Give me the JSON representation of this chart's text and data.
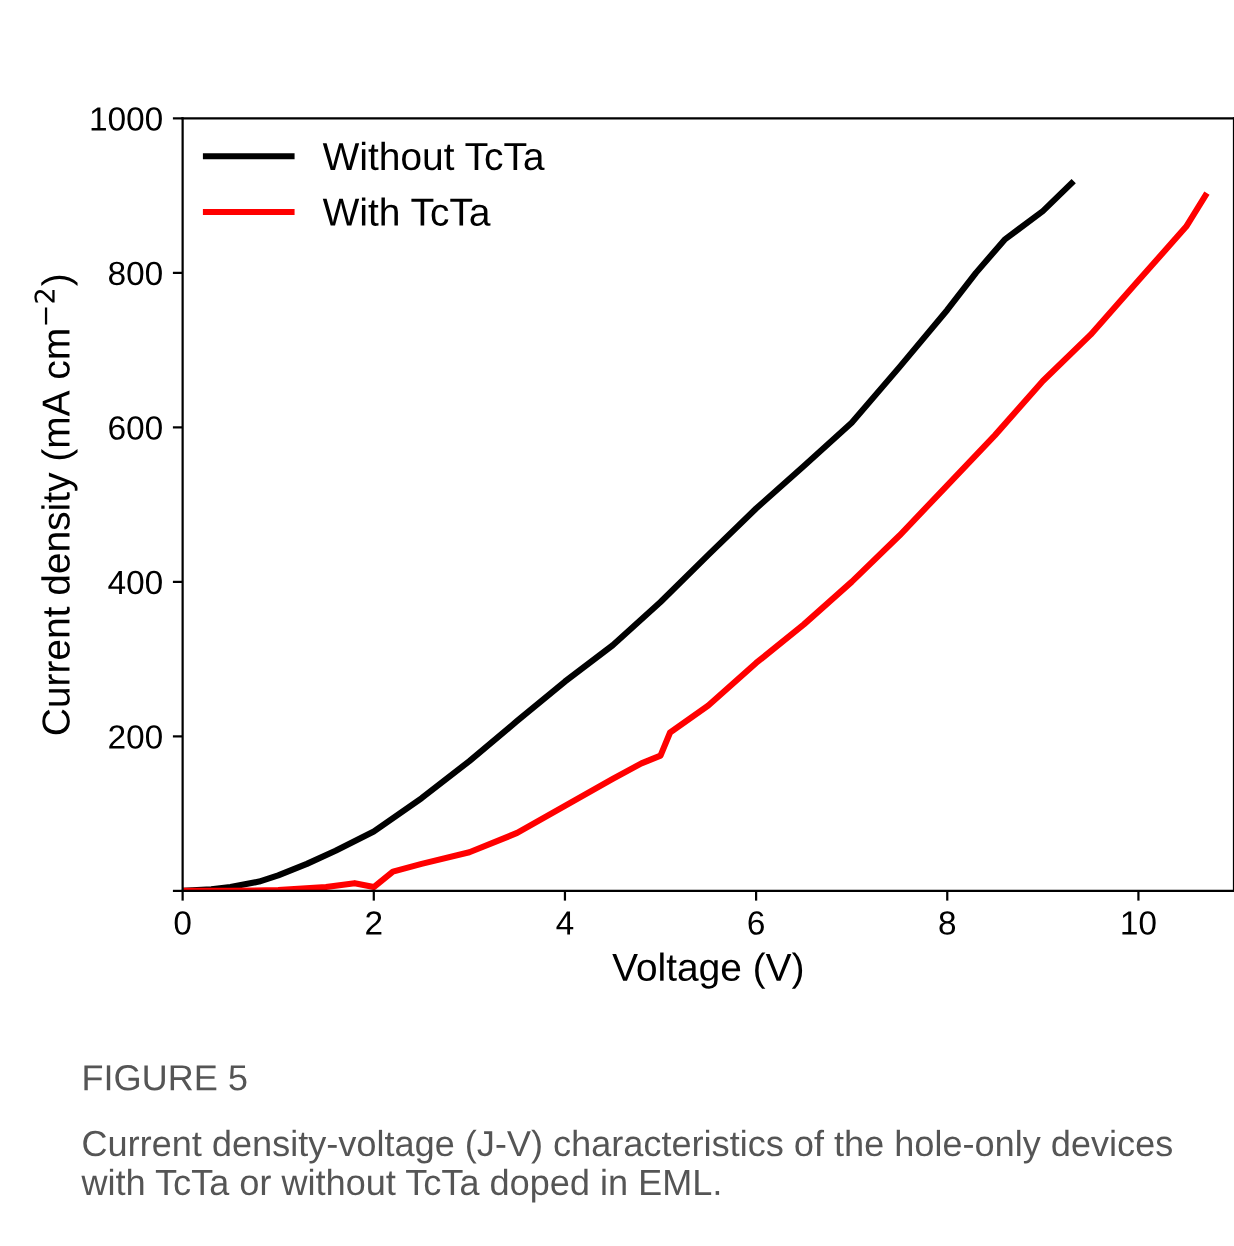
{
  "chart_data": {
    "type": "line",
    "xlabel": "Voltage (V)",
    "ylabel": "Current density (mA cm$^{−2}$)",
    "xlim": [
      0,
      11
    ],
    "ylim": [
      0,
      1000
    ],
    "xticks": [
      0,
      2,
      4,
      6,
      8,
      10
    ],
    "yticks": [
      {
        "value": 0,
        "label": null
      },
      200,
      400,
      600,
      800,
      1000
    ],
    "legend": "top left",
    "grid": false,
    "marker": "none",
    "line_style": "solid",
    "series": [
      {
        "name": "Without TcTa",
        "color": "#000000",
        "x": [
          0,
          0.3,
          0.5,
          0.8,
          1,
          1.3,
          1.6,
          2,
          2.5,
          3,
          3.5,
          4,
          4.5,
          5,
          5.5,
          6,
          6.5,
          7,
          7.5,
          8,
          8.3,
          8.6,
          9,
          9.3
        ],
        "values": [
          0,
          2,
          5,
          12,
          20,
          35,
          52,
          77,
          120,
          168,
          220,
          271,
          318,
          374,
          435,
          495,
          550,
          606,
          678,
          752,
          800,
          843,
          880,
          916
        ]
      },
      {
        "name": "With TcTa",
        "color": "#ff0000",
        "x": [
          0,
          0.5,
          1,
          1.5,
          1.8,
          2,
          2.2,
          2.5,
          3,
          3.5,
          4,
          4.5,
          4.8,
          5,
          5.1,
          5.5,
          6,
          6.5,
          7,
          7.5,
          8,
          8.5,
          9,
          9.5,
          10,
          10.5,
          10.7
        ],
        "values": [
          0,
          0,
          1,
          5,
          10,
          5,
          25,
          35,
          50,
          75,
          110,
          145,
          165,
          175,
          205,
          240,
          295,
          345,
          400,
          460,
          525,
          590,
          660,
          720,
          790,
          860,
          900
        ]
      }
    ],
    "annotations": [
      "FIGURE 5",
      "Current density-voltage (J-V) characteristics of the hole-only devices with TcTa or without TcTa doped in EML."
    ]
  }
}
